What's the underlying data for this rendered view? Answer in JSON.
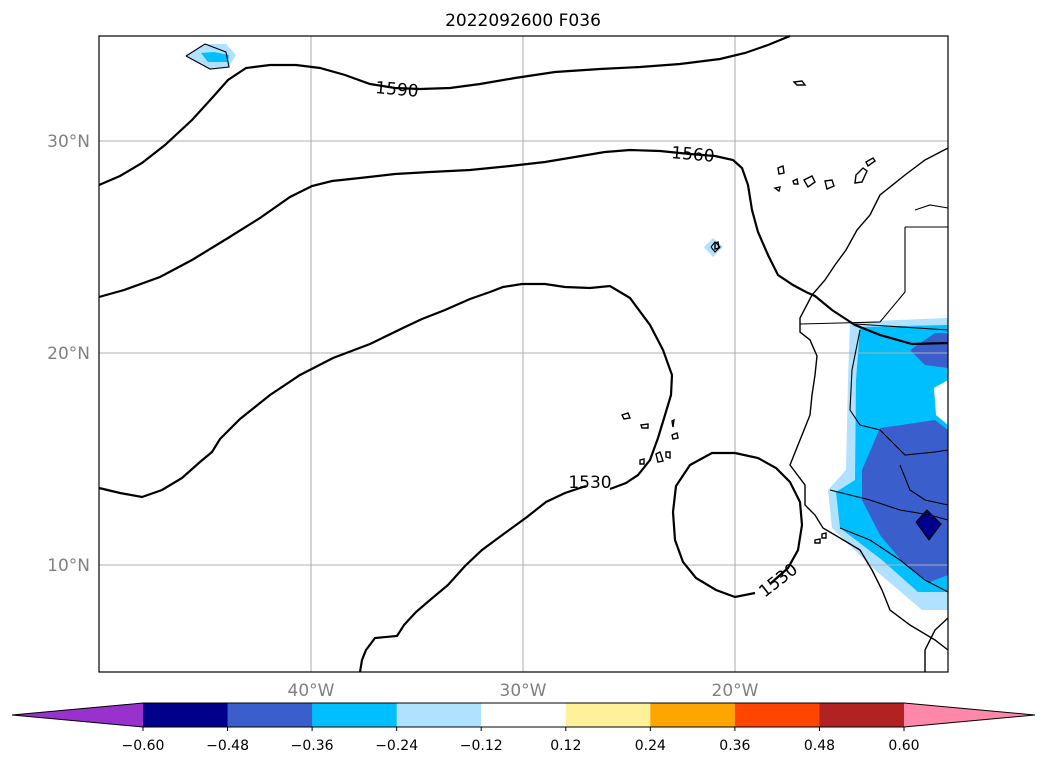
{
  "title": "2022092600 F036",
  "map": {
    "lat_labels": [
      "30°N",
      "20°N",
      "10°N"
    ],
    "lon_labels": [
      "40°W",
      "30°W",
      "20°W"
    ],
    "contour_labels": [
      "1590",
      "1560",
      "1530",
      "1530"
    ]
  },
  "colorbar": {
    "colors": [
      "#9932cc",
      "#00008b",
      "#3a5fcd",
      "#00bfff",
      "#b0e2ff",
      "#ffffff",
      "#fff09a",
      "#ffa500",
      "#ff4500",
      "#b22222",
      "#ff88aa"
    ],
    "tick_labels": [
      "−0.60",
      "−0.48",
      "−0.36",
      "−0.24",
      "−0.12",
      "0.12",
      "0.24",
      "0.36",
      "0.48",
      "0.60"
    ]
  }
}
